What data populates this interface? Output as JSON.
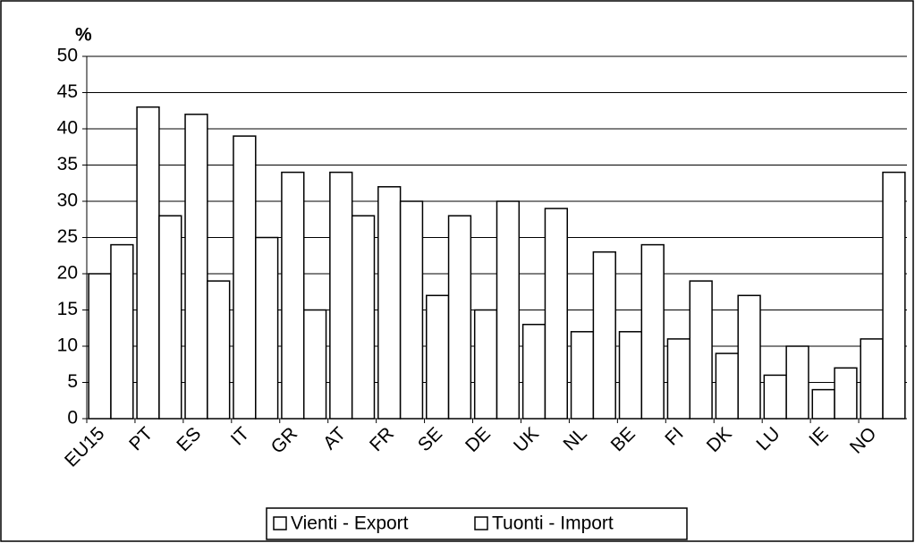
{
  "chart_data": {
    "type": "bar",
    "y_unit_label": "%",
    "categories": [
      "EU15",
      "PT",
      "ES",
      "IT",
      "GR",
      "AT",
      "FR",
      "SE",
      "DE",
      "UK",
      "NL",
      "BE",
      "FI",
      "DK",
      "LU",
      "IE",
      "NO"
    ],
    "series": [
      {
        "name": "Vienti - Export",
        "color": "#ffffff",
        "values": [
          20,
          43,
          42,
          39,
          34,
          34,
          32,
          17,
          15,
          13,
          12,
          12,
          11,
          9,
          6,
          4,
          11
        ]
      },
      {
        "name": "Tuonti - Import",
        "color": "#ffffff",
        "values": [
          24,
          28,
          19,
          25,
          15,
          28,
          30,
          28,
          30,
          29,
          23,
          24,
          19,
          17,
          10,
          7,
          34
        ]
      }
    ],
    "ylim": [
      0,
      50
    ],
    "yticks": [
      0,
      5,
      10,
      15,
      20,
      25,
      30,
      35,
      40,
      45,
      50
    ],
    "grid": true,
    "legend": "bottom"
  }
}
